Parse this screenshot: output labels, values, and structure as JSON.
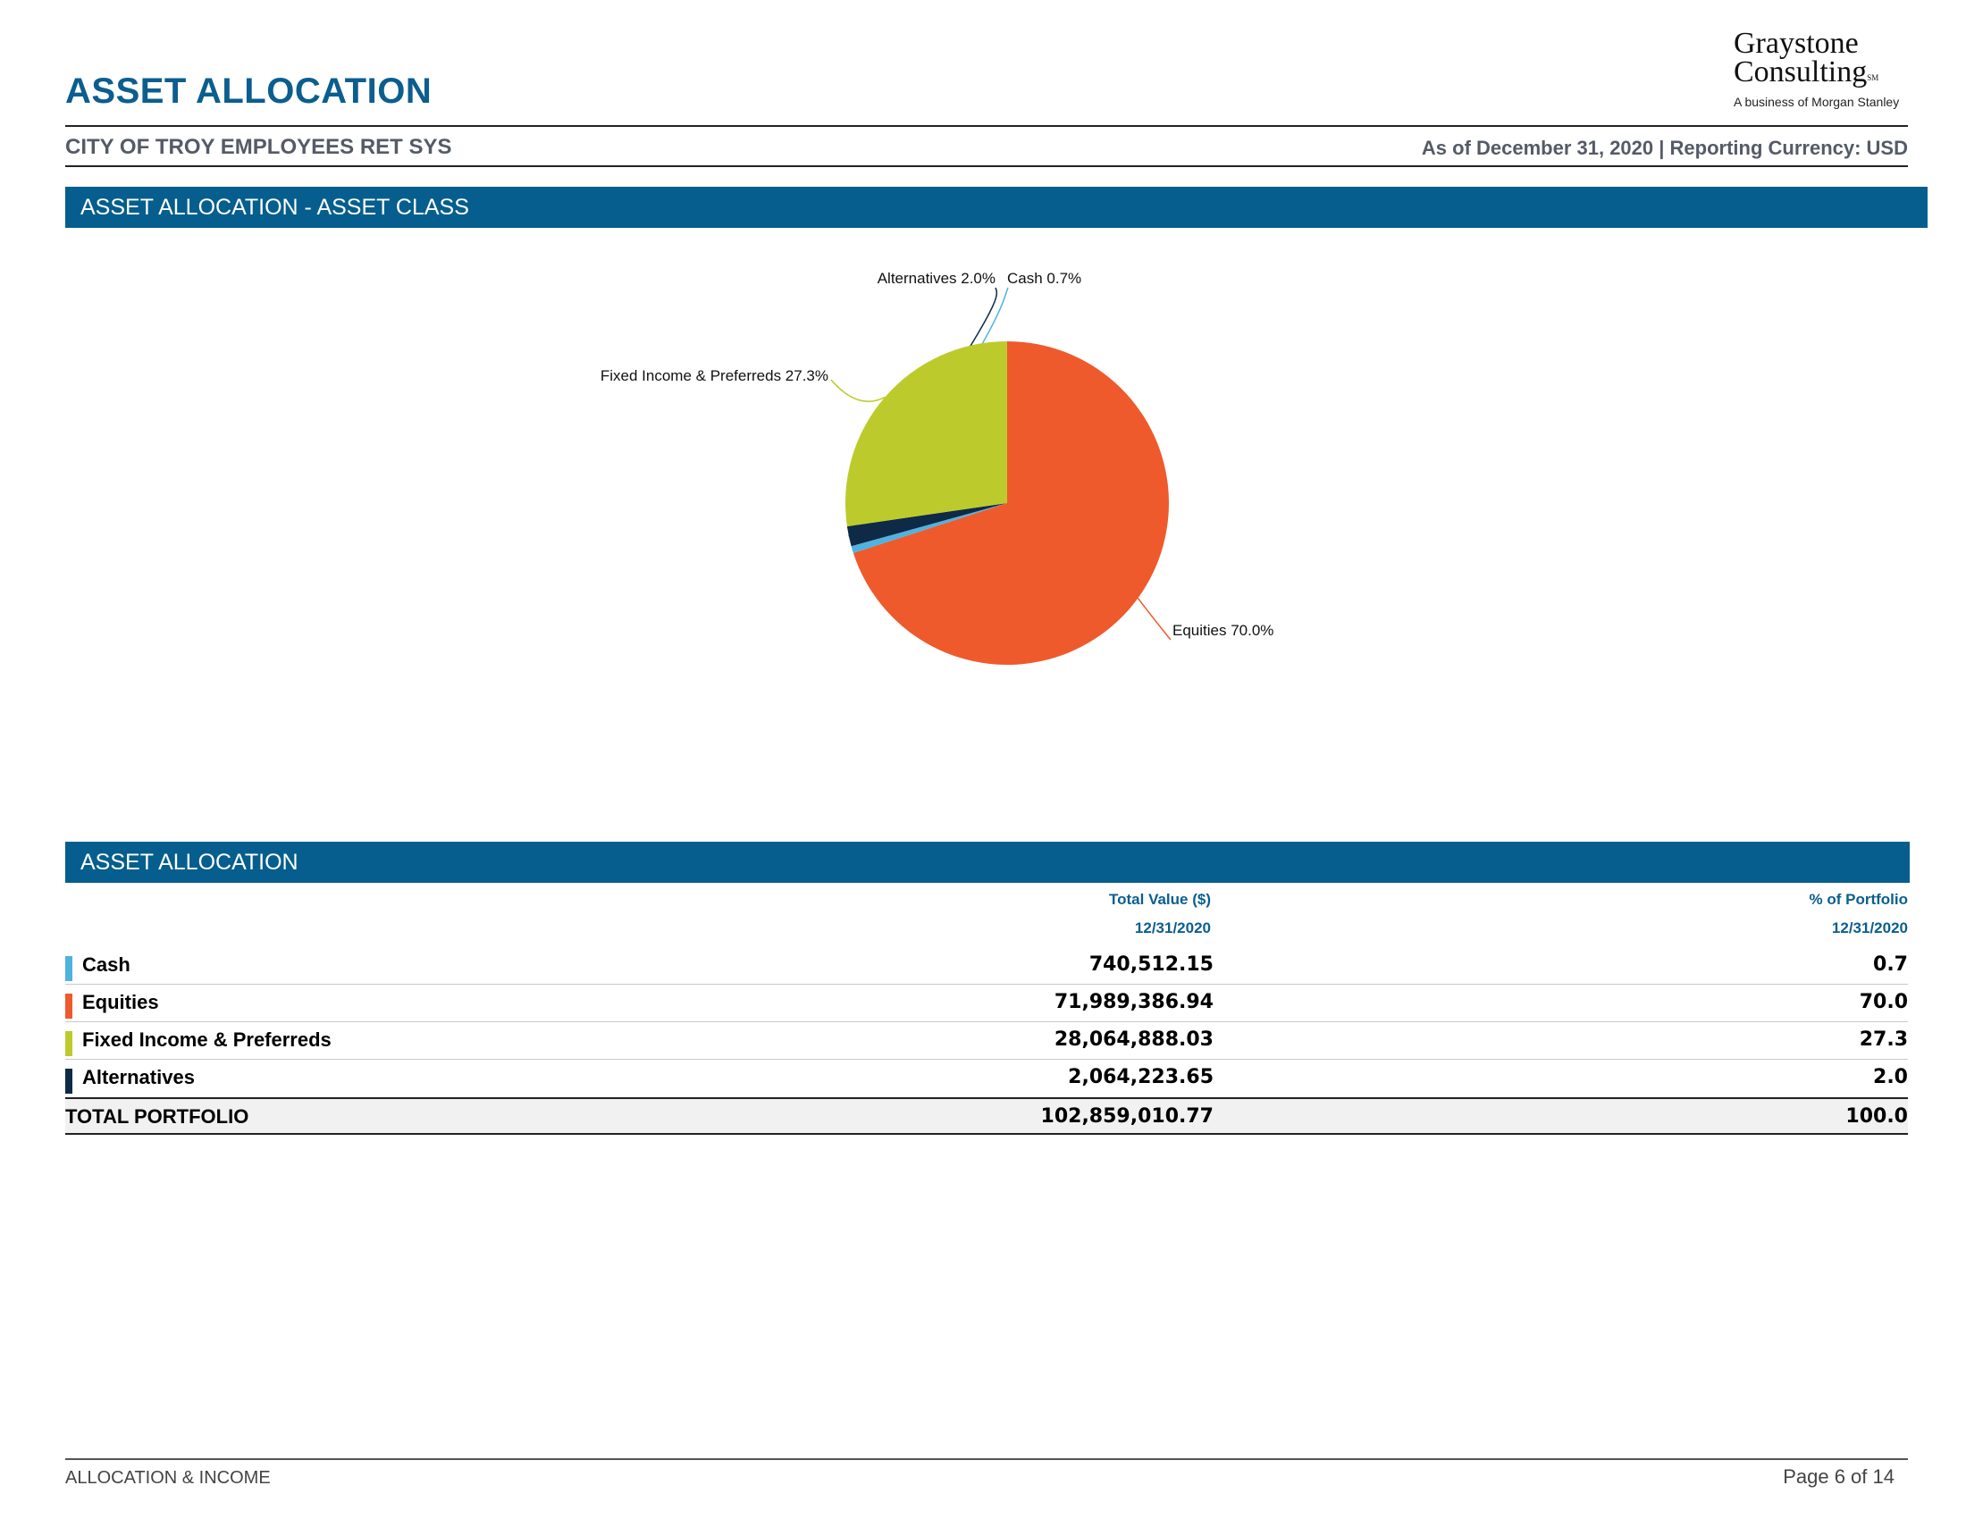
{
  "header": {
    "title": "ASSET ALLOCATION",
    "client_name": "CITY OF TROY EMPLOYEES RET SYS",
    "as_of": "As of December 31, 2020 | Reporting Currency: USD"
  },
  "logo": {
    "line1": "Graystone",
    "line2": "Consulting",
    "mark": "SM",
    "tagline": "A business of Morgan Stanley"
  },
  "sections": {
    "chart_band": "ASSET ALLOCATION - ASSET CLASS",
    "table_band": "ASSET ALLOCATION"
  },
  "chart_data": {
    "type": "pie",
    "categories": [
      "Equities",
      "Cash",
      "Alternatives",
      "Fixed Income & Preferreds"
    ],
    "values": [
      70.0,
      0.7,
      2.0,
      27.3
    ],
    "colors": [
      "#ee5a2c",
      "#4fb3e0",
      "#0e2a47",
      "#bccb2b"
    ],
    "slice_labels": [
      "Equities 70.0%",
      "Cash 0.7%",
      "Alternatives 2.0%",
      "Fixed Income & Preferreds 27.3%"
    ],
    "start_angle_deg": 0,
    "direction": "clockwise"
  },
  "table": {
    "columns": {
      "value_header": "Total Value ($)",
      "value_date": "12/31/2020",
      "pct_header": "% of Portfolio",
      "pct_date": "12/31/2020"
    },
    "rows": [
      {
        "label": "Cash",
        "value": "740,512.15",
        "pct": "0.7",
        "color": "#4fb3e0"
      },
      {
        "label": "Equities",
        "value": "71,989,386.94",
        "pct": "70.0",
        "color": "#ee5a2c"
      },
      {
        "label": "Fixed Income & Preferreds",
        "value": "28,064,888.03",
        "pct": "27.3",
        "color": "#bccb2b"
      },
      {
        "label": "Alternatives",
        "value": "2,064,223.65",
        "pct": "2.0",
        "color": "#0e2a47"
      }
    ],
    "total": {
      "label": "TOTAL PORTFOLIO",
      "value": "102,859,010.77",
      "pct": "100.0"
    }
  },
  "footer": {
    "left": "ALLOCATION & INCOME",
    "right": "Page 6 of 14"
  }
}
